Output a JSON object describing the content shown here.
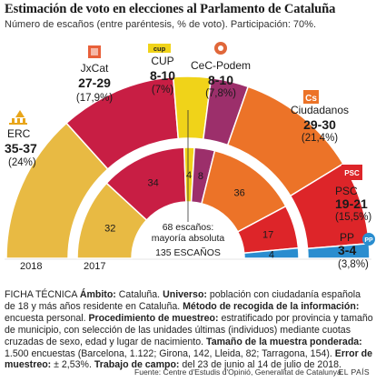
{
  "header": {
    "title": "Estimación de voto en elecciones al Parlamento de Cataluña",
    "subtitle": "Número de escaños (entre paréntesis, % de voto). Participación: 70%."
  },
  "chart_data": {
    "type": "pie",
    "subtype": "parliament-semicircle",
    "total_seats": 135,
    "majority": 68,
    "center_label_1": "68 escaños:",
    "center_label_2": "mayoría absoluta",
    "center_label_3": "135 ESCAÑOS",
    "ring_labels": [
      "2018",
      "2017"
    ],
    "parties": [
      {
        "name": "ERC",
        "color": "#e8ba43",
        "seats_2018": "35-37",
        "pct_2018": "(24%)",
        "seats_mid_2018": 36,
        "seats_2017": 32,
        "logo": "erc-logo-icon"
      },
      {
        "name": "JxCat",
        "color": "#c81e44",
        "seats_2018": "27-29",
        "pct_2018": "(17,9%)",
        "seats_mid_2018": 28,
        "seats_2017": 34,
        "logo": "jxcat-logo-icon"
      },
      {
        "name": "CUP",
        "color": "#f0d319",
        "seats_2018": "8-10",
        "pct_2018": "(7%)",
        "seats_mid_2018": 9,
        "seats_2017": 4,
        "logo": "cup-logo-icon"
      },
      {
        "name": "CeC-Podem",
        "color": "#9c2f6b",
        "seats_2018": "8-10",
        "pct_2018": "(7,8%)",
        "seats_mid_2018": 9,
        "seats_2017": 8,
        "logo": "cec-podem-logo-icon"
      },
      {
        "name": "Ciudadanos",
        "color": "#ec7328",
        "seats_2018": "29-30",
        "pct_2018": "(21,4%)",
        "seats_mid_2018": 29.5,
        "seats_2017": 36,
        "logo": "ciudadanos-logo-icon"
      },
      {
        "name": "PSC",
        "color": "#dd2529",
        "seats_2018": "19-21",
        "pct_2018": "(15,5%)",
        "seats_mid_2018": 20,
        "seats_2017": 17,
        "logo": "psc-logo-icon"
      },
      {
        "name": "PP",
        "color": "#2a8dcf",
        "seats_2018": "3-4",
        "pct_2018": "(3,8%)",
        "seats_mid_2018": 3.5,
        "seats_2017": 4,
        "logo": "pp-logo-icon"
      }
    ],
    "legend": "none"
  },
  "ficha": {
    "s1": "FICHA TÉCNICA ",
    "l1": "Ámbito:",
    "t1": " Cataluña. ",
    "l2": "Universo:",
    "t2": " población con ciudadanía española de 18 y más años residente en Cataluña. ",
    "l3": "Método de recogida de la información:",
    "t3": " encuesta personal. ",
    "l4": "Procedimiento de muestreo:",
    "t4": " estratificado por provincia y tamaño de municipio, con selección de las unidades últimas (individuos) mediante cuotas cruzadas de sexo, edad y lugar de nacimiento. ",
    "l5": "Tamaño de la muestra ponderada:",
    "t5": " 1.500 encuestas (Barcelona, 1.122; Girona, 142, Lleida, 82; Tarragona, 154). ",
    "l6": "Error de muestreo:",
    "t6": " ± 2,53%. ",
    "l7": "Trabajo de campo:",
    "t7": " del 23 de junio al 14 de julio de 2018."
  },
  "footer": {
    "source": "Fuente: Centre d'Estudis d'Opinió, Generalitat de Catalunya.",
    "brand": "EL PAÍS"
  }
}
